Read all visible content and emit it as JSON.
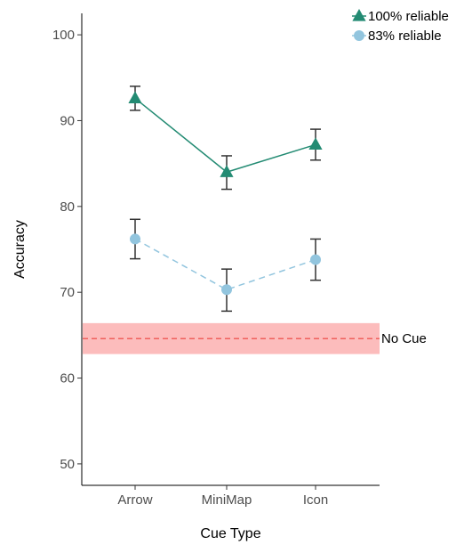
{
  "chart_data": {
    "type": "line",
    "xlabel": "Cue Type",
    "ylabel": "Accuracy",
    "categories": [
      "Arrow",
      "MiniMap",
      "Icon"
    ],
    "ylim": [
      47.5,
      102.5
    ],
    "yticks": [
      50,
      60,
      70,
      80,
      90,
      100
    ],
    "grid": false,
    "legend_position": "top-right",
    "series": [
      {
        "name": "100% reliable",
        "values": [
          92.6,
          84.0,
          87.2
        ],
        "error_low": [
          91.2,
          82.0,
          85.4
        ],
        "error_high": [
          94.0,
          85.9,
          89.0
        ],
        "color": "#238b73",
        "marker": "triangle",
        "line_style": "solid"
      },
      {
        "name": "83% reliable",
        "values": [
          76.2,
          70.3,
          73.8
        ],
        "error_low": [
          73.9,
          67.8,
          71.4
        ],
        "error_high": [
          78.5,
          72.7,
          76.2
        ],
        "color": "#92c5de",
        "marker": "circle",
        "line_style": "dashed"
      }
    ],
    "reference": {
      "label": "No Cue",
      "value": 64.6,
      "band": [
        62.8,
        66.4
      ],
      "line_color": "#f0605d",
      "band_color": "#fcbcbc"
    },
    "error_bar_color": "#333333"
  }
}
